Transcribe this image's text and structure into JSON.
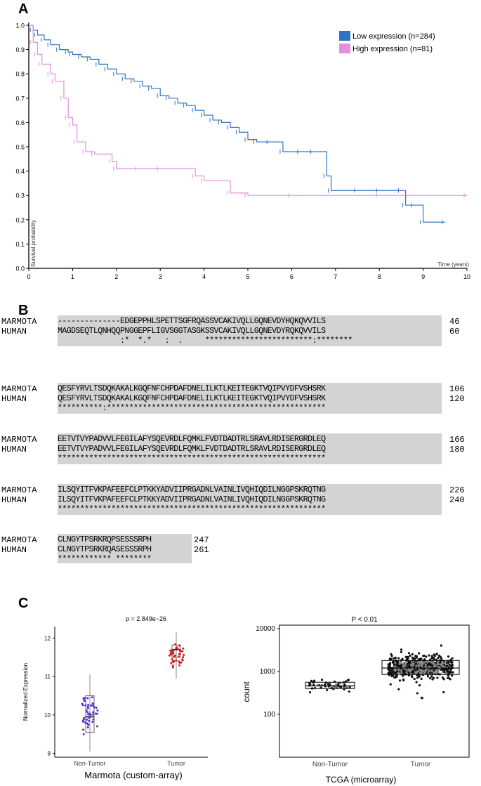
{
  "panels": {
    "a": "A",
    "b": "B",
    "c": "C"
  },
  "km": {
    "ylabel": "Survival probability",
    "xlabel": "Time (years)",
    "legend": [
      {
        "label": "Low expression (n=284)",
        "color": "#2f74c4"
      },
      {
        "label": "High expression (n=81)",
        "color": "#e38fd9"
      }
    ]
  },
  "alignment": {
    "blocks": [
      {
        "m": "--------------EDGEPPHLSPETTSGFRQASSVCAKIVQLLGQNEVDYHQKQVVILS",
        "mnum": "46",
        "h": "MAGDSEQTLQNHQQPNGGEPFLIGVSGGTASGKSSVCAKIVQLLGQNEVDYRQKQVVILS",
        "hnum": "60",
        "c": "              :*  *.*   :  .     ************************:********"
      },
      {
        "m": "QESFYRVLTSDQKAKALKGQFNFCHPDAFDNELILKTLKEITEGKTVQIPVYDFVSHSRK",
        "mnum": "106",
        "h": "QESFYRVLTSDQKAKALKGQFNFCHPDAFDNELILKTLKEITEGKTVQIPVYDFVSHSRK",
        "hnum": "120",
        "c": "**********:*************************************************"
      },
      {
        "m": "EETVTVYPADVVLFEGILAFYSQEVRDLFQMKLFVDTDADTRLSRAVLRDISERGRDLEQ",
        "mnum": "166",
        "h": "EETVTVYPADVVLFEGILAFYSQEVRDLFQMKLFVDTDADTRLSRAVLRDISERGRDLEQ",
        "hnum": "180",
        "c": "************************************************************"
      },
      {
        "m": "ILSQYITFVKPAFEEFCLPTKKYADVIIPRGADNLVAINLIVQHIQDILNGGPSKRQTNG",
        "mnum": "226",
        "h": "ILSQYITFVKPAFEEFCLPTKKYADVIIPRGADNLVAINLIVQHIQDILNGGPSKRQTNG",
        "hnum": "240",
        "c": "************************************************************"
      },
      {
        "m": "CLNGYTPSRKRQPSESSSRPH",
        "mnum": "247",
        "h": "CLNGYTPSRKRQASESSSRPH",
        "hnum": "261",
        "c": "************ ********"
      }
    ],
    "species": [
      "MARMOTA",
      "HUMAN"
    ]
  },
  "chart_data": [
    {
      "type": "line",
      "title": "",
      "xlabel": "Time (years)",
      "ylabel": "Survival probability",
      "xlim": [
        0,
        10
      ],
      "ylim": [
        0,
        1.0
      ],
      "legend_position": "top-right",
      "series": [
        {
          "name": "Low expression (n=284)",
          "color": "#2f74c4",
          "x": [
            0,
            0.1,
            0.2,
            0.35,
            0.5,
            0.7,
            0.9,
            1.0,
            1.2,
            1.4,
            1.6,
            1.8,
            2.0,
            2.2,
            2.4,
            2.6,
            2.8,
            3.0,
            3.2,
            3.4,
            3.6,
            3.8,
            4.0,
            4.2,
            4.4,
            4.6,
            4.8,
            5.0,
            5.2,
            5.5,
            5.8,
            6.2,
            6.5,
            6.8,
            6.9,
            7.5,
            8.0,
            8.5,
            8.6,
            8.8,
            9.0,
            9.5
          ],
          "y": [
            1.0,
            0.98,
            0.96,
            0.94,
            0.92,
            0.9,
            0.89,
            0.88,
            0.87,
            0.86,
            0.84,
            0.82,
            0.8,
            0.78,
            0.77,
            0.75,
            0.74,
            0.71,
            0.7,
            0.68,
            0.67,
            0.65,
            0.63,
            0.61,
            0.6,
            0.58,
            0.56,
            0.53,
            0.52,
            0.52,
            0.48,
            0.48,
            0.48,
            0.38,
            0.32,
            0.32,
            0.32,
            0.32,
            0.26,
            0.26,
            0.19,
            0.19
          ]
        },
        {
          "name": "High expression (n=81)",
          "color": "#e38fd9",
          "x": [
            0,
            0.1,
            0.2,
            0.3,
            0.5,
            0.6,
            0.8,
            0.9,
            1.0,
            1.1,
            1.3,
            1.5,
            1.9,
            2.0,
            2.5,
            3.0,
            3.8,
            4.0,
            4.6,
            5.0,
            6.0,
            8.0,
            10.0
          ],
          "y": [
            1.0,
            0.93,
            0.88,
            0.84,
            0.8,
            0.77,
            0.7,
            0.62,
            0.59,
            0.52,
            0.48,
            0.47,
            0.44,
            0.41,
            0.41,
            0.41,
            0.38,
            0.36,
            0.31,
            0.3,
            0.3,
            0.3,
            0.3
          ]
        }
      ],
      "xticks": [
        "0",
        "1",
        "2",
        "3",
        "4",
        "5",
        "6",
        "7",
        "8",
        "9",
        "10"
      ],
      "yticks": [
        "0.0",
        "0.1",
        "0.2",
        "0.3",
        "0.4",
        "0.5",
        "0.6",
        "0.7",
        "0.8",
        "0.9",
        "1.0"
      ]
    },
    {
      "type": "scatter",
      "title": "p = 2.849e−26",
      "xlabel": "Marmota (custom-array)",
      "ylabel": "Normalized Expression",
      "categories": [
        "Non-Tumor",
        "Tumor"
      ],
      "ylim": [
        8.9,
        12.3
      ],
      "yticks": [
        "9",
        "10",
        "11",
        "12"
      ],
      "box": [
        {
          "q1": 9.55,
          "median": 9.95,
          "q3": 10.5,
          "min": 9.05,
          "max": 11.05,
          "color": "#5a2fd8"
        },
        {
          "q1": 11.5,
          "median": 11.7,
          "q3": 11.82,
          "min": 10.95,
          "max": 12.15,
          "color": "#d11f1f"
        }
      ]
    },
    {
      "type": "scatter",
      "title": "P < 0.01",
      "xlabel": "TCGA (microarray)",
      "ylabel": "count",
      "categories": [
        "Non-Tumor",
        "Tumor"
      ],
      "log_scale": true,
      "yticks": [
        "100",
        "1000",
        "10000"
      ],
      "box": [
        {
          "q1": 400,
          "median": 460,
          "q3": 560,
          "min": 280,
          "max": 850
        },
        {
          "q1": 850,
          "median": 1200,
          "q3": 1800,
          "min": 200,
          "max": 8000
        }
      ]
    }
  ]
}
